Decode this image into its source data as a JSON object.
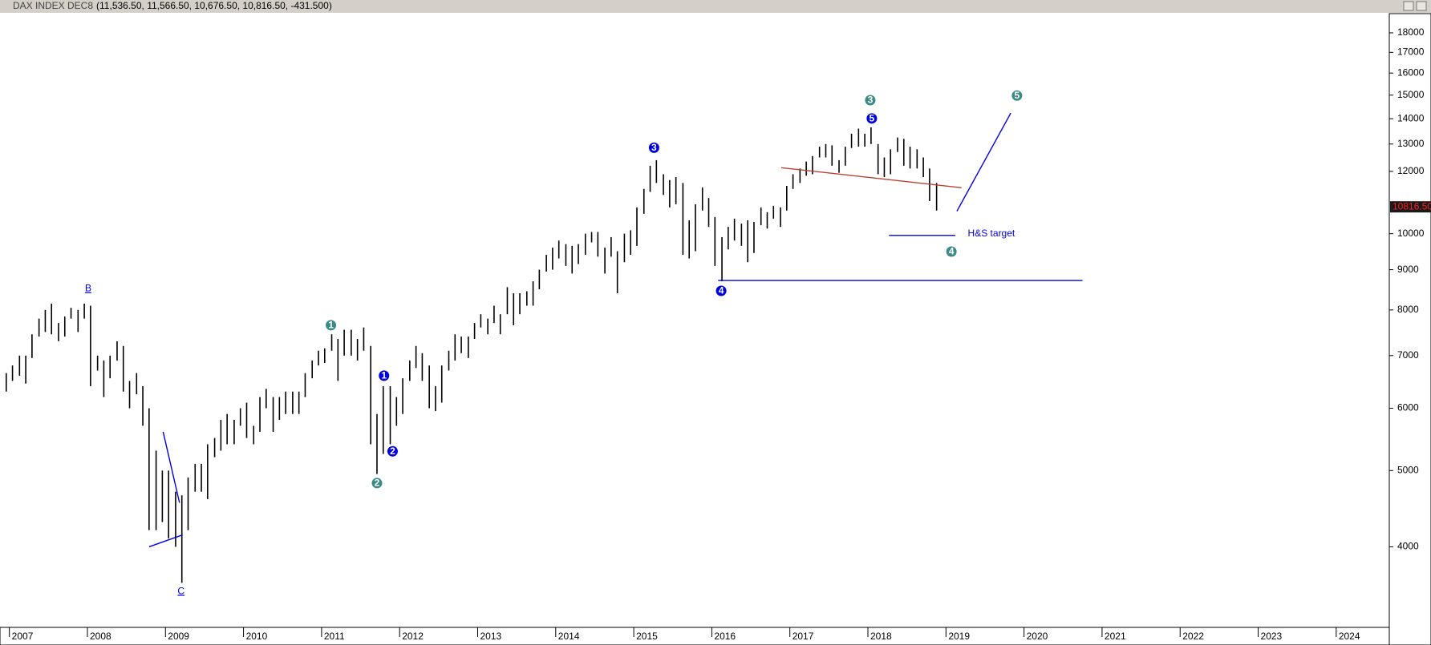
{
  "chart_data": {
    "type": "hilo",
    "title": "DAX INDEX DEC8",
    "ohlc_summary": "(11,536.50, 11,566.50, 10,676.50, 10,816.50, -431.500)",
    "color": "#000000",
    "log_scale": true,
    "xlim": [
      2006.88,
      2024.68
    ],
    "xticks": [
      2007,
      2008,
      2009,
      2010,
      2011,
      2012,
      2013,
      2014,
      2015,
      2016,
      2017,
      2018,
      2019,
      2020,
      2021,
      2022,
      2023,
      2024
    ],
    "ylim": [
      3160,
      19040
    ],
    "yticks": [
      4000,
      5000,
      6000,
      7000,
      8000,
      9000,
      10000,
      12000,
      13000,
      14000,
      15000,
      16000,
      17000,
      18000
    ],
    "last_price": {
      "value": 10816.5,
      "label": "10816.50"
    },
    "x": [
      2006.96,
      2007.04,
      2007.13,
      2007.21,
      2007.29,
      2007.38,
      2007.46,
      2007.54,
      2007.63,
      2007.71,
      2007.79,
      2007.88,
      2007.96,
      2008.04,
      2008.13,
      2008.21,
      2008.29,
      2008.38,
      2008.46,
      2008.54,
      2008.63,
      2008.71,
      2008.79,
      2008.88,
      2008.96,
      2009.04,
      2009.13,
      2009.21,
      2009.29,
      2009.38,
      2009.46,
      2009.54,
      2009.63,
      2009.71,
      2009.79,
      2009.88,
      2009.96,
      2010.04,
      2010.13,
      2010.21,
      2010.29,
      2010.38,
      2010.46,
      2010.54,
      2010.63,
      2010.71,
      2010.79,
      2010.88,
      2010.96,
      2011.04,
      2011.13,
      2011.21,
      2011.29,
      2011.38,
      2011.46,
      2011.54,
      2011.63,
      2011.71,
      2011.79,
      2011.88,
      2011.96,
      2012.04,
      2012.13,
      2012.21,
      2012.29,
      2012.38,
      2012.46,
      2012.54,
      2012.63,
      2012.71,
      2012.79,
      2012.88,
      2012.96,
      2013.04,
      2013.13,
      2013.21,
      2013.29,
      2013.38,
      2013.46,
      2013.54,
      2013.63,
      2013.71,
      2013.79,
      2013.88,
      2013.96,
      2014.04,
      2014.13,
      2014.21,
      2014.29,
      2014.38,
      2014.46,
      2014.54,
      2014.63,
      2014.71,
      2014.79,
      2014.88,
      2014.96,
      2015.04,
      2015.13,
      2015.21,
      2015.29,
      2015.38,
      2015.46,
      2015.54,
      2015.63,
      2015.71,
      2015.79,
      2015.88,
      2015.96,
      2016.04,
      2016.13,
      2016.21,
      2016.29,
      2016.38,
      2016.46,
      2016.54,
      2016.63,
      2016.71,
      2016.79,
      2016.88,
      2016.96,
      2017.04,
      2017.13,
      2017.21,
      2017.29,
      2017.38,
      2017.46,
      2017.54,
      2017.63,
      2017.71,
      2017.79,
      2017.88,
      2017.96,
      2018.04,
      2018.13,
      2018.21,
      2018.29,
      2018.38,
      2018.46,
      2018.54,
      2018.63,
      2018.71,
      2018.79,
      2018.88
    ],
    "high": [
      6650,
      6800,
      7000,
      7000,
      7450,
      7800,
      8000,
      8150,
      7700,
      7850,
      8050,
      8000,
      8150,
      8100,
      7000,
      6900,
      7000,
      7300,
      7200,
      6500,
      6650,
      6400,
      6000,
      5300,
      5000,
      5000,
      4700,
      4650,
      4900,
      5100,
      5100,
      5400,
      5500,
      5800,
      5900,
      5800,
      6000,
      6100,
      5700,
      6200,
      6350,
      6200,
      6200,
      6300,
      6300,
      6300,
      6650,
      6900,
      7100,
      7150,
      7450,
      7350,
      7550,
      7550,
      7350,
      7600,
      7200,
      5900,
      6400,
      6400,
      6200,
      6550,
      6900,
      7200,
      7050,
      6800,
      6400,
      6800,
      7100,
      7450,
      7400,
      7400,
      7700,
      7900,
      7800,
      8100,
      7900,
      8550,
      8400,
      8400,
      8450,
      8700,
      9000,
      9400,
      9600,
      9800,
      9700,
      9650,
      9700,
      10000,
      10050,
      10050,
      9600,
      9900,
      9500,
      10000,
      10100,
      10800,
      11400,
      12200,
      12400,
      11900,
      11700,
      11800,
      11600,
      10400,
      10900,
      11450,
      11100,
      10500,
      9900,
      10200,
      10450,
      10300,
      10400,
      10350,
      10800,
      10650,
      10850,
      10800,
      11500,
      11900,
      12100,
      12350,
      12550,
      12900,
      13000,
      12950,
      12400,
      12900,
      13400,
      13600,
      13400,
      13650,
      13000,
      12500,
      12800,
      13250,
      13200,
      12900,
      12800,
      12500,
      12100,
      11600
    ],
    "low": [
      6300,
      6500,
      6600,
      6450,
      6950,
      7400,
      7500,
      7450,
      7300,
      7400,
      7800,
      7500,
      7800,
      6400,
      6700,
      6200,
      6550,
      6900,
      6300,
      6000,
      6250,
      5700,
      4200,
      4200,
      4300,
      4100,
      4000,
      3600,
      4200,
      4700,
      4700,
      4600,
      5200,
      5300,
      5400,
      5400,
      5700,
      5500,
      5400,
      5600,
      6000,
      5600,
      5800,
      5900,
      5900,
      5900,
      6200,
      6550,
      6800,
      6850,
      7100,
      6500,
      7000,
      7000,
      6900,
      7100,
      5400,
      4950,
      5250,
      5400,
      5700,
      5900,
      6500,
      6750,
      6500,
      6000,
      5950,
      6100,
      6700,
      6900,
      7050,
      6950,
      7350,
      7600,
      7450,
      7700,
      7450,
      7900,
      7650,
      7900,
      8100,
      8100,
      8500,
      8950,
      9000,
      9300,
      9100,
      8900,
      9150,
      9400,
      9750,
      9350,
      8900,
      9350,
      8400,
      9200,
      9400,
      9650,
      10600,
      11300,
      11600,
      11200,
      10800,
      10900,
      9400,
      9300,
      9500,
      10700,
      10200,
      9100,
      8700,
      9550,
      9800,
      9650,
      9200,
      9450,
      10250,
      10150,
      10450,
      10200,
      10700,
      11400,
      11600,
      11850,
      11900,
      12500,
      12500,
      12200,
      11950,
      12200,
      12850,
      12900,
      12900,
      13000,
      11900,
      11800,
      11900,
      12700,
      12200,
      12100,
      12100,
      11800,
      11000,
      10700
    ],
    "annotations": [
      {
        "text": "B",
        "x": 2008.01,
        "y": 8509,
        "color": "#0000e0",
        "style": "underline"
      },
      {
        "text": "C",
        "x": 2009.2,
        "y": 3510,
        "color": "#0000e0",
        "style": "underline"
      },
      {
        "text": "1",
        "x": 2011.12,
        "y": 7650,
        "color": "#3a8a86",
        "style": "circle"
      },
      {
        "text": "1",
        "x": 2011.8,
        "y": 6600,
        "color": "#0000e0",
        "style": "circle"
      },
      {
        "text": "2",
        "x": 2011.91,
        "y": 5290,
        "color": "#0000e0",
        "style": "circle"
      },
      {
        "text": "2",
        "x": 2011.71,
        "y": 4820,
        "color": "#3a8a86",
        "style": "circle"
      },
      {
        "text": "3",
        "x": 2015.26,
        "y": 12860,
        "color": "#0000e0",
        "style": "circle"
      },
      {
        "text": "4",
        "x": 2016.12,
        "y": 8460,
        "color": "#0000e0",
        "style": "circle"
      },
      {
        "text": "3",
        "x": 2018.03,
        "y": 14780,
        "color": "#3a8a86",
        "style": "circle"
      },
      {
        "text": "5",
        "x": 2018.05,
        "y": 14010,
        "color": "#0000e0",
        "style": "circle"
      },
      {
        "text": "5",
        "x": 2019.91,
        "y": 14980,
        "color": "#3a8a86",
        "style": "circle"
      },
      {
        "text": "4",
        "x": 2019.07,
        "y": 9490,
        "color": "#3a8a86",
        "style": "circle"
      },
      {
        "text": "H&S target",
        "x": 2019.28,
        "y": 10000,
        "color": "#0000e0",
        "style": "plain"
      }
    ],
    "lines": [
      {
        "color": "#0000e0",
        "x": [
          2008.97,
          2009.18
        ],
        "y": [
          5600,
          4550
        ]
      },
      {
        "color": "#0000e0",
        "x": [
          2008.79,
          2009.22
        ],
        "y": [
          4000,
          4142
        ]
      },
      {
        "color": "#0000e0",
        "x": [
          2016.08,
          2020.75
        ],
        "y": [
          8720,
          8720
        ]
      },
      {
        "color": "#b5442e",
        "x": [
          2016.89,
          2019.2
        ],
        "y": [
          12130,
          11440
        ]
      },
      {
        "color": "#0000e0",
        "x": [
          2018.27,
          2019.12
        ],
        "y": [
          9950,
          9950
        ]
      },
      {
        "color": "#0000e0",
        "x": [
          2019.14,
          2019.83
        ],
        "y": [
          10680,
          14230
        ]
      }
    ]
  }
}
